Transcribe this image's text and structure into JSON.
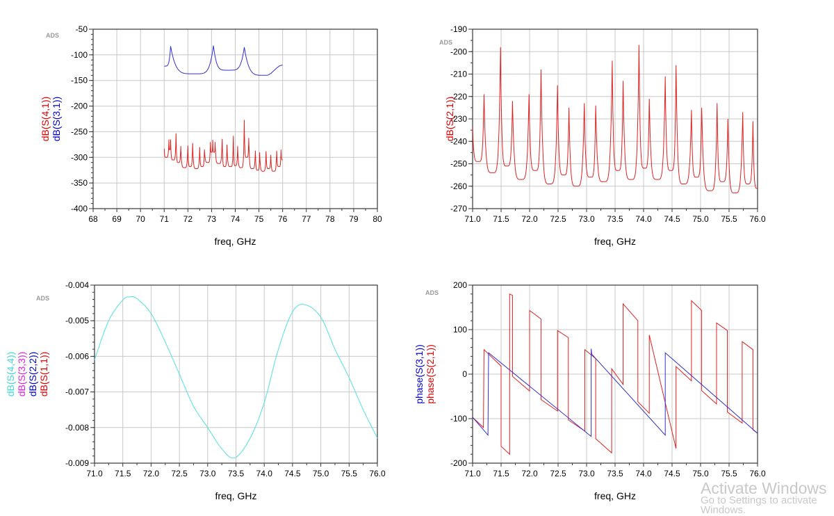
{
  "watermark": {
    "line1": "Activate Windows",
    "line2": "Go to Settings to activate Windows."
  },
  "chart_data": [
    {
      "type": "line",
      "badge": "ADS",
      "xlabel": "freq, GHz",
      "xlabel_color": "#000000",
      "xlim": [
        68,
        80
      ],
      "xstep": 1,
      "xdec": 0,
      "ylim": [
        -400,
        -50
      ],
      "ystep": 50,
      "yminor": 10,
      "ydec": 0,
      "grid": true,
      "ylabels": [
        {
          "text": "dB(S(4,1))",
          "color": "#e00000"
        },
        {
          "text": "dB(S(3,1))",
          "color": "#0000d0"
        }
      ],
      "series": [
        {
          "name": "dB(S(3,1))",
          "color": "#3030d0",
          "kind": "resonance",
          "points": [
            [
              71.0,
              -122,
              "v"
            ],
            [
              71.27,
              -83,
              "p"
            ],
            [
              72.3,
              -137,
              "v"
            ],
            [
              73.08,
              -82,
              "p"
            ],
            [
              73.7,
              -130,
              "v"
            ],
            [
              74.38,
              -85,
              "p"
            ],
            [
              75.3,
              -140,
              "v"
            ],
            [
              76.0,
              -120,
              "v"
            ]
          ]
        },
        {
          "name": "dB(S(4,1))",
          "color": "#e02020",
          "kind": "resonance",
          "points": [
            [
              71.0,
              -283,
              "p"
            ],
            [
              71.08,
              -300,
              "v"
            ],
            [
              71.2,
              -265,
              "p"
            ],
            [
              71.23,
              -285,
              "v"
            ],
            [
              71.27,
              -265,
              "p"
            ],
            [
              71.38,
              -305,
              "v"
            ],
            [
              71.5,
              -253,
              "p"
            ],
            [
              71.6,
              -310,
              "v"
            ],
            [
              71.7,
              -278,
              "p"
            ],
            [
              71.86,
              -320,
              "v"
            ],
            [
              72.0,
              -277,
              "p"
            ],
            [
              72.1,
              -318,
              "v"
            ],
            [
              72.2,
              -272,
              "p"
            ],
            [
              72.36,
              -322,
              "v"
            ],
            [
              72.5,
              -280,
              "p"
            ],
            [
              72.6,
              -318,
              "v"
            ],
            [
              72.7,
              -285,
              "p"
            ],
            [
              72.85,
              -310,
              "v"
            ],
            [
              72.95,
              -270,
              "p"
            ],
            [
              73.0,
              -290,
              "v"
            ],
            [
              73.05,
              -266,
              "p"
            ],
            [
              73.1,
              -290,
              "v"
            ],
            [
              73.15,
              -270,
              "p"
            ],
            [
              73.3,
              -312,
              "v"
            ],
            [
              73.45,
              -264,
              "p"
            ],
            [
              73.55,
              -318,
              "v"
            ],
            [
              73.65,
              -275,
              "p"
            ],
            [
              73.8,
              -318,
              "v"
            ],
            [
              73.92,
              -258,
              "p"
            ],
            [
              74.0,
              -316,
              "v"
            ],
            [
              74.1,
              -278,
              "p"
            ],
            [
              74.25,
              -320,
              "v"
            ],
            [
              74.38,
              -227,
              "p"
            ],
            [
              74.48,
              -300,
              "v"
            ],
            [
              74.57,
              -262,
              "p"
            ],
            [
              74.72,
              -322,
              "v"
            ],
            [
              74.85,
              -287,
              "p"
            ],
            [
              74.95,
              -325,
              "v"
            ],
            [
              75.03,
              -290,
              "p"
            ],
            [
              75.18,
              -327,
              "v"
            ],
            [
              75.3,
              -288,
              "p"
            ],
            [
              75.4,
              -322,
              "v"
            ],
            [
              75.5,
              -295,
              "p"
            ],
            [
              75.62,
              -327,
              "v"
            ],
            [
              75.75,
              -287,
              "p"
            ],
            [
              75.85,
              -318,
              "v"
            ],
            [
              75.93,
              -285,
              "p"
            ],
            [
              76.0,
              -305,
              "v"
            ]
          ]
        }
      ]
    },
    {
      "type": "line",
      "badge": "ADS",
      "xlabel": "freq, GHz",
      "xlabel_color": "#e00000",
      "xlim": [
        71,
        76
      ],
      "xstep": 0.5,
      "xdec": 1,
      "ylim": [
        -270,
        -190
      ],
      "ystep": 10,
      "yminor": 5,
      "ydec": 0,
      "grid": true,
      "ylabels": [
        {
          "text": "dB(S(2,1))",
          "color": "#e00000"
        }
      ],
      "series": [
        {
          "name": "dB(S(2,1))",
          "color": "#e02020",
          "kind": "resonance",
          "points": [
            [
              71.0,
              -234,
              "p"
            ],
            [
              71.1,
              -249,
              "v"
            ],
            [
              71.2,
              -219,
              "p"
            ],
            [
              71.35,
              -254,
              "v"
            ],
            [
              71.49,
              -198,
              "p"
            ],
            [
              71.6,
              -251,
              "v"
            ],
            [
              71.7,
              -222,
              "p"
            ],
            [
              71.85,
              -257,
              "v"
            ],
            [
              71.99,
              -219,
              "p"
            ],
            [
              72.1,
              -253,
              "v"
            ],
            [
              72.2,
              -208,
              "p"
            ],
            [
              72.35,
              -259,
              "v"
            ],
            [
              72.49,
              -215,
              "p"
            ],
            [
              72.6,
              -255,
              "v"
            ],
            [
              72.69,
              -225,
              "p"
            ],
            [
              72.82,
              -260,
              "v"
            ],
            [
              72.96,
              -223,
              "p"
            ],
            [
              73.07,
              -256,
              "v"
            ],
            [
              73.16,
              -224,
              "p"
            ],
            [
              73.3,
              -258,
              "v"
            ],
            [
              73.45,
              -204,
              "p"
            ],
            [
              73.55,
              -253,
              "v"
            ],
            [
              73.64,
              -213,
              "p"
            ],
            [
              73.78,
              -257,
              "v"
            ],
            [
              73.92,
              -197,
              "p"
            ],
            [
              74.02,
              -252,
              "v"
            ],
            [
              74.1,
              -221,
              "p"
            ],
            [
              74.24,
              -257,
              "v"
            ],
            [
              74.38,
              -211,
              "p"
            ],
            [
              74.48,
              -253,
              "v"
            ],
            [
              74.57,
              -206,
              "p"
            ],
            [
              74.7,
              -259,
              "v"
            ],
            [
              74.84,
              -226,
              "p"
            ],
            [
              74.93,
              -256,
              "v"
            ],
            [
              75.02,
              -225,
              "p"
            ],
            [
              75.17,
              -262,
              "v"
            ],
            [
              75.29,
              -223,
              "p"
            ],
            [
              75.38,
              -258,
              "v"
            ],
            [
              75.48,
              -230,
              "p"
            ],
            [
              75.6,
              -263,
              "v"
            ],
            [
              75.74,
              -227,
              "p"
            ],
            [
              75.83,
              -259,
              "v"
            ],
            [
              75.92,
              -231,
              "p"
            ],
            [
              76.0,
              -261,
              "v"
            ]
          ]
        }
      ]
    },
    {
      "type": "line",
      "badge": "ADS",
      "xlabel": "freq, GHz",
      "xlabel_color": "#000000",
      "xlim": [
        71,
        76
      ],
      "xstep": 0.5,
      "xdec": 1,
      "ylim": [
        -0.009,
        -0.004
      ],
      "ystep": 0.001,
      "yminor": 0.0002,
      "ydec": 3,
      "grid": true,
      "ylabels": [
        {
          "text": "dB(S(4,4))",
          "color": "#40d8d8"
        },
        {
          "text": "dB(S(3,3))",
          "color": "#e020e0"
        },
        {
          "text": "dB(S(2,2))",
          "color": "#0000d0"
        },
        {
          "text": "dB(S(1,1))",
          "color": "#e00000"
        }
      ],
      "series": [
        {
          "name": "dB(S(4,4))",
          "color": "#50e0e0",
          "kind": "smooth",
          "points": [
            [
              71.0,
              -0.0061
            ],
            [
              71.25,
              -0.005
            ],
            [
              71.5,
              -0.00442
            ],
            [
              71.62,
              -0.00433
            ],
            [
              71.75,
              -0.00438
            ],
            [
              72.0,
              -0.0048
            ],
            [
              72.25,
              -0.0056
            ],
            [
              72.5,
              -0.0065
            ],
            [
              72.75,
              -0.0074
            ],
            [
              73.0,
              -0.008
            ],
            [
              73.25,
              -0.0086
            ],
            [
              73.48,
              -0.00885
            ],
            [
              73.75,
              -0.0083
            ],
            [
              74.0,
              -0.0073
            ],
            [
              74.25,
              -0.0058
            ],
            [
              74.5,
              -0.00475
            ],
            [
              74.72,
              -0.00455
            ],
            [
              75.0,
              -0.0049
            ],
            [
              75.25,
              -0.0058
            ],
            [
              75.5,
              -0.0066
            ],
            [
              75.75,
              -0.0075
            ],
            [
              76.0,
              -0.0083
            ]
          ]
        }
      ]
    },
    {
      "type": "line",
      "badge": "ADS",
      "xlabel": "freq, GHz",
      "xlabel_color": "#000000",
      "xlim": [
        71,
        76
      ],
      "xstep": 0.5,
      "xdec": 1,
      "ylim": [
        -200,
        200
      ],
      "ystep": 100,
      "yminor": 20,
      "ydec": 0,
      "grid": true,
      "ylabels": [
        {
          "text": "phase(S(3,1))",
          "color": "#0000d0"
        },
        {
          "text": "phase(S(2,1))",
          "color": "#e00000"
        }
      ],
      "series": [
        {
          "name": "phase(S(2,1))",
          "color": "#e02020",
          "kind": "line",
          "points": [
            [
              71.0,
              -97
            ],
            [
              71.19,
              -120
            ],
            [
              71.2,
              55
            ],
            [
              71.5,
              18
            ],
            [
              71.5,
              -162
            ],
            [
              71.65,
              -180
            ],
            [
              71.65,
              180
            ],
            [
              71.7,
              177
            ],
            [
              71.7,
              -5
            ],
            [
              72.0,
              -38
            ],
            [
              72.0,
              143
            ],
            [
              72.2,
              124
            ],
            [
              72.2,
              -57
            ],
            [
              72.49,
              -83
            ],
            [
              72.49,
              98
            ],
            [
              72.68,
              82
            ],
            [
              72.68,
              -103
            ],
            [
              72.97,
              -128
            ],
            [
              72.97,
              55
            ],
            [
              73.16,
              35
            ],
            [
              73.16,
              -145
            ],
            [
              73.44,
              -177
            ],
            [
              73.44,
              12
            ],
            [
              73.64,
              -23
            ],
            [
              73.64,
              158
            ],
            [
              73.9,
              120
            ],
            [
              73.9,
              -62
            ],
            [
              74.1,
              -88
            ],
            [
              74.1,
              88
            ],
            [
              74.57,
              -167
            ],
            [
              74.57,
              17
            ],
            [
              74.84,
              -15
            ],
            [
              74.84,
              165
            ],
            [
              75.02,
              143
            ],
            [
              75.02,
              -37
            ],
            [
              75.28,
              -67
            ],
            [
              75.28,
              115
            ],
            [
              75.47,
              98
            ],
            [
              75.47,
              -85
            ],
            [
              75.73,
              -110
            ],
            [
              75.73,
              73
            ],
            [
              75.92,
              55
            ],
            [
              75.92,
              -125
            ],
            [
              76.0,
              -133
            ]
          ]
        },
        {
          "name": "phase(S(3,1))",
          "color": "#3030d0",
          "kind": "line",
          "points": [
            [
              71.0,
              -97
            ],
            [
              71.27,
              -137
            ],
            [
              71.28,
              48
            ],
            [
              73.08,
              -140
            ],
            [
              73.08,
              57
            ],
            [
              73.09,
              45
            ],
            [
              74.38,
              -137
            ],
            [
              74.38,
              48
            ],
            [
              76.0,
              -133
            ]
          ]
        }
      ]
    }
  ]
}
